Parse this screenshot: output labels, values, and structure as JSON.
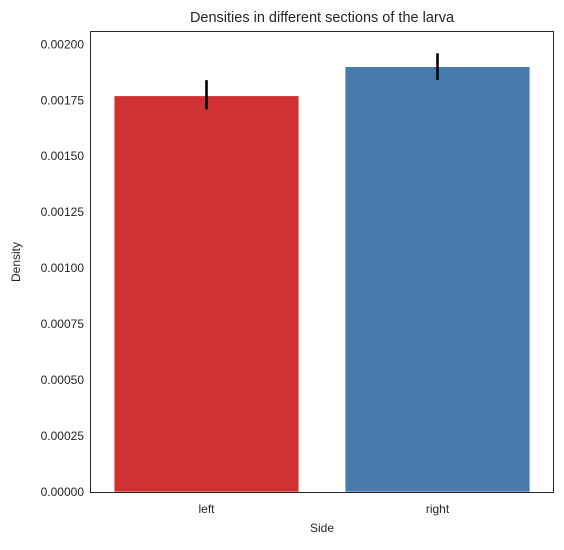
{
  "chart_data": {
    "type": "bar",
    "title": "Densities in different sections of the larva",
    "xlabel": "Side",
    "ylabel": "Density",
    "categories": [
      "left",
      "right"
    ],
    "values": [
      0.00177,
      0.0019
    ],
    "error_low": [
      0.00171,
      0.00184
    ],
    "error_high": [
      0.00184,
      0.00196
    ],
    "colors": [
      "#d03234",
      "#467bab"
    ],
    "ylim": [
      0,
      0.002055
    ],
    "yticks": [
      "0.00000",
      "0.00025",
      "0.00050",
      "0.00075",
      "0.00100",
      "0.00125",
      "0.00150",
      "0.00175",
      "0.00200"
    ],
    "grid": false,
    "legend": "none"
  }
}
